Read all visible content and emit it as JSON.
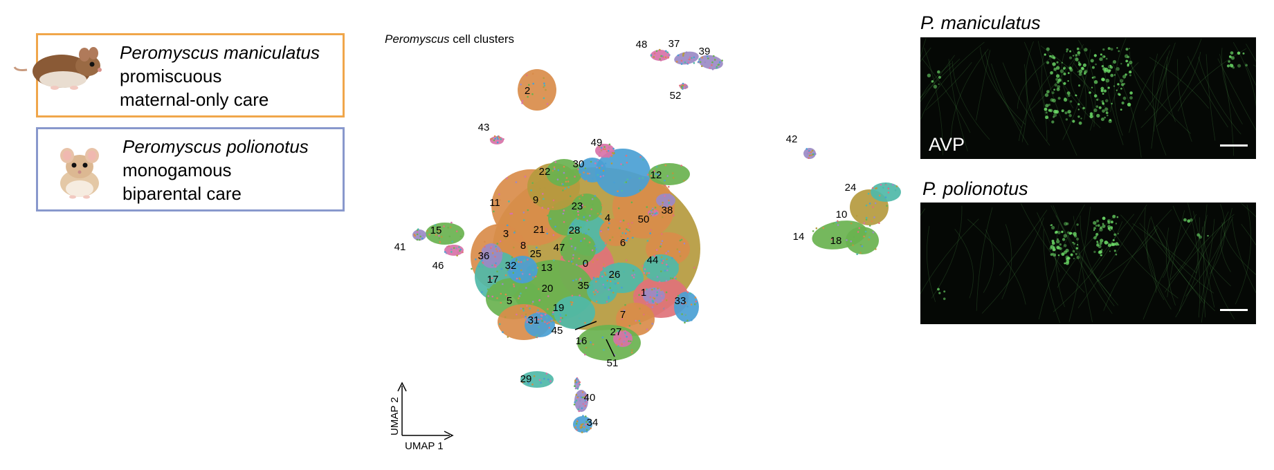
{
  "species": [
    {
      "name": "Peromyscus maniculatus",
      "lines": [
        "promiscuous",
        "maternal-only care"
      ],
      "border_color": "#f0a64a",
      "icon": "deer-mouse-photo"
    },
    {
      "name": "Peromyscus polionotus",
      "lines": [
        "monogamous",
        "biparental care"
      ],
      "border_color": "#8898cc",
      "icon": "oldfield-mouse-photo"
    }
  ],
  "umap": {
    "title_italic": "Peromyscus",
    "title_rest": " cell clusters",
    "axis_x_label": "UMAP 1",
    "axis_y_label": "UMAP 2",
    "cluster_labels": [
      "0",
      "1",
      "2",
      "3",
      "4",
      "5",
      "6",
      "7",
      "8",
      "9",
      "10",
      "11",
      "12",
      "13",
      "14",
      "15",
      "16",
      "17",
      "18",
      "19",
      "20",
      "21",
      "22",
      "23",
      "24",
      "25",
      "26",
      "27",
      "28",
      "29",
      "30",
      "31",
      "32",
      "33",
      "34",
      "35",
      "36",
      "37",
      "38",
      "39",
      "40",
      "41",
      "42",
      "43",
      "44",
      "45",
      "46",
      "47",
      "48",
      "49",
      "50",
      "51",
      "52"
    ]
  },
  "microscopy": {
    "panels": [
      {
        "title": "P. maniculatus",
        "label": "AVP"
      },
      {
        "title": "P. polionotus",
        "label": ""
      }
    ],
    "signal_color": "#6fe06a"
  }
}
